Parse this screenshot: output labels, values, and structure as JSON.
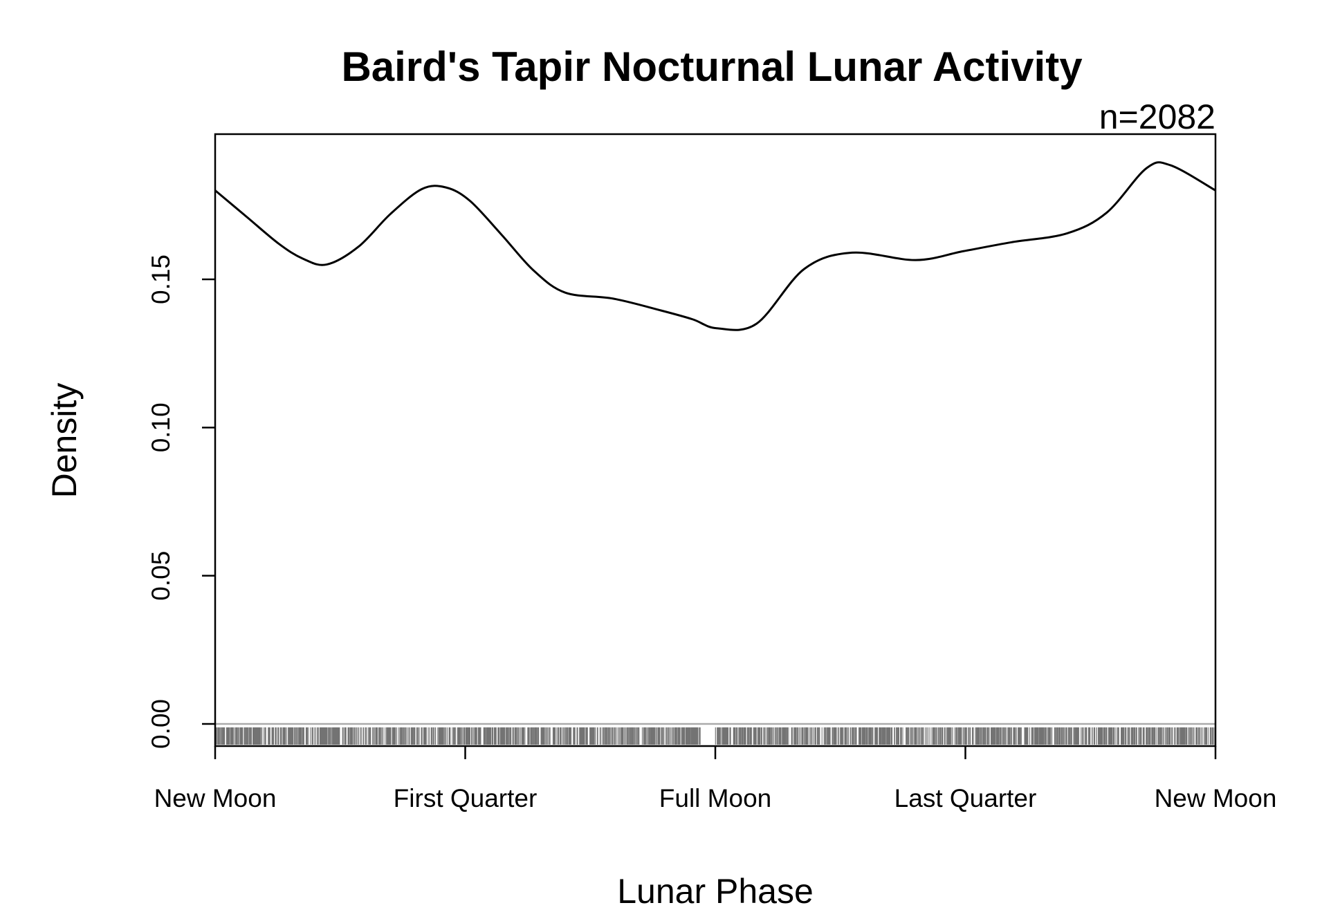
{
  "chart_data": {
    "type": "line",
    "title": "Baird's Tapir Nocturnal Lunar Activity",
    "annotation": "n=2082",
    "xlabel": "Lunar Phase",
    "ylabel": "Density",
    "xlim": [
      0,
      6.2832
    ],
    "ylim": [
      0,
      0.19
    ],
    "x_ticks": [
      {
        "value": 0,
        "label": "New Moon"
      },
      {
        "value": 1.5708,
        "label": "First Quarter"
      },
      {
        "value": 3.1416,
        "label": "Full Moon"
      },
      {
        "value": 4.7124,
        "label": "Last Quarter"
      },
      {
        "value": 6.2832,
        "label": "New Moon"
      }
    ],
    "y_ticks": [
      {
        "value": 0,
        "label": "0.00"
      },
      {
        "value": 0.05,
        "label": "0.05"
      },
      {
        "value": 0.1,
        "label": "0.10"
      },
      {
        "value": 0.15,
        "label": "0.15"
      }
    ],
    "grid": false,
    "legend": false,
    "rug": true,
    "n": 2082,
    "series": [
      {
        "x": [
          0,
          0.2,
          0.4,
          0.55,
          0.7,
          0.9,
          1.1,
          1.3,
          1.45,
          1.6,
          1.8,
          2.0,
          2.2,
          2.5,
          2.8,
          3.0,
          3.15,
          3.4,
          3.7,
          4.0,
          4.4,
          4.7,
          5.0,
          5.35,
          5.6,
          5.85,
          6.0,
          6.2832
        ],
        "y": [
          0.18,
          0.171,
          0.162,
          0.157,
          0.155,
          0.161,
          0.172,
          0.1805,
          0.181,
          0.1765,
          0.165,
          0.153,
          0.1455,
          0.1435,
          0.1395,
          0.1365,
          0.1335,
          0.135,
          0.1535,
          0.159,
          0.1565,
          0.1595,
          0.1625,
          0.1655,
          0.1725,
          0.1875,
          0.1885,
          0.18
        ]
      }
    ]
  }
}
